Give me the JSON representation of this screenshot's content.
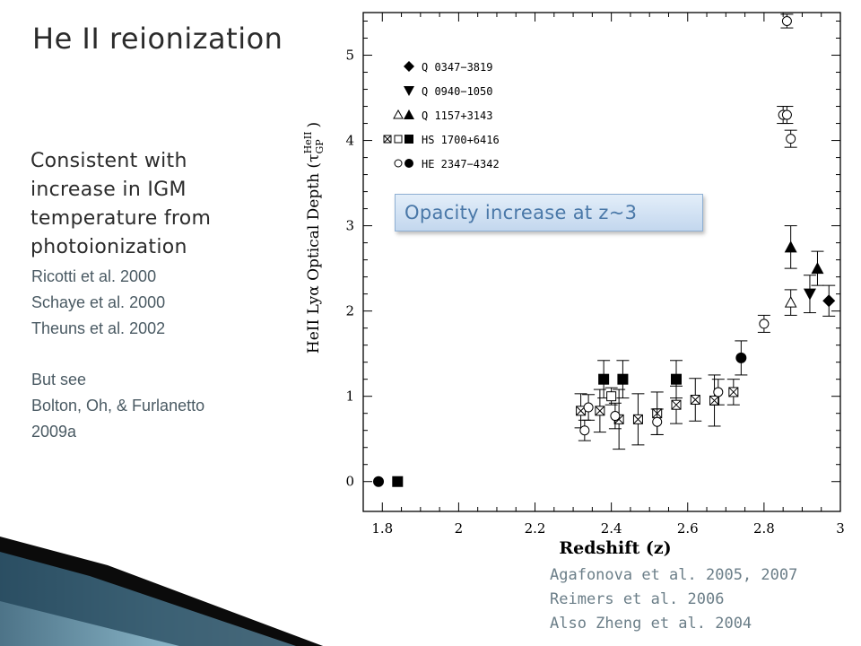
{
  "slide": {
    "title": "He II reionization",
    "body": [
      "Consistent with",
      "increase in IGM",
      "temperature from",
      "photoionization"
    ],
    "refs_left": [
      "Ricotti et al. 2000",
      "Schaye et al. 2000",
      "Theuns et al. 2002"
    ],
    "see_also": [
      "But see",
      "Bolton, Oh, & Furlanetto",
      "2009a"
    ],
    "refs_bottom": [
      "Agafonova et al. 2005, 2007",
      "Reimers et al. 2006",
      "Also Zheng et al. 2004"
    ],
    "callout": "Opacity increase at z~3"
  },
  "chart_data": {
    "type": "scatter",
    "xlabel": "Redshift (z)",
    "ylabel": "HeII Lyα Optical Depth (τ",
    "ylabel_sub": "GP",
    "ylabel_sup": "HeII",
    "xlim": [
      1.75,
      3.0
    ],
    "ylim": [
      -0.35,
      5.5
    ],
    "xticks": [
      1.8,
      2,
      2.2,
      2.4,
      2.6,
      2.8,
      3
    ],
    "xtick_labels": [
      "1.8",
      "2",
      "2.2",
      "2.4",
      "2.6",
      "2.8",
      "3"
    ],
    "yticks": [
      0,
      1,
      2,
      3,
      4,
      5
    ],
    "ytick_labels": [
      "0",
      "1",
      "2",
      "3",
      "4",
      "5"
    ],
    "legend": [
      {
        "label": "Q 0347−3819",
        "markers": [
          "diamond-filled"
        ]
      },
      {
        "label": "Q 0940−1050",
        "markers": [
          "tri-down-filled"
        ]
      },
      {
        "label": "Q 1157+3143",
        "markers": [
          "tri-up-open",
          "tri-up-filled"
        ]
      },
      {
        "label": "HS 1700+6416",
        "markers": [
          "square-x",
          "square-open",
          "square-filled"
        ]
      },
      {
        "label": "HE 2347−4342",
        "markers": [
          "circle-open",
          "circle-filled"
        ]
      }
    ],
    "series": [
      {
        "name": "Q 0347−3819",
        "marker": "diamond-filled",
        "points": [
          {
            "x": 2.97,
            "y": 2.12,
            "err": 0.18
          }
        ]
      },
      {
        "name": "Q 0940−1050",
        "marker": "tri-down-filled",
        "points": [
          {
            "x": 2.92,
            "y": 2.2,
            "err": 0.22
          }
        ]
      },
      {
        "name": "Q 1157+3143",
        "marker": "tri-up-filled",
        "points": [
          {
            "x": 2.87,
            "y": 2.75,
            "err": 0.25
          },
          {
            "x": 2.94,
            "y": 2.5,
            "err": 0.2
          }
        ]
      },
      {
        "name": "Q 1157+3143",
        "marker": "tri-up-open",
        "points": [
          {
            "x": 2.87,
            "y": 2.1,
            "err": 0.15
          }
        ]
      },
      {
        "name": "HS 1700+6416",
        "marker": "square-filled",
        "points": [
          {
            "x": 1.84,
            "y": 0.0,
            "err": 0
          },
          {
            "x": 2.38,
            "y": 1.2,
            "err": 0.22
          },
          {
            "x": 2.43,
            "y": 1.2,
            "err": 0.22
          },
          {
            "x": 2.57,
            "y": 1.2,
            "err": 0.22
          }
        ]
      },
      {
        "name": "HS 1700+6416",
        "marker": "square-open",
        "points": [
          {
            "x": 2.4,
            "y": 1.0,
            "err": 0.1
          }
        ]
      },
      {
        "name": "HS 1700+6416",
        "marker": "square-x",
        "points": [
          {
            "x": 2.32,
            "y": 0.83,
            "err": 0.2
          },
          {
            "x": 2.37,
            "y": 0.83,
            "err": 0.25
          },
          {
            "x": 2.42,
            "y": 0.73,
            "err": 0.35
          },
          {
            "x": 2.47,
            "y": 0.73,
            "err": 0.3
          },
          {
            "x": 2.52,
            "y": 0.8,
            "err": 0.25
          },
          {
            "x": 2.57,
            "y": 0.9,
            "err": 0.22
          },
          {
            "x": 2.62,
            "y": 0.96,
            "err": 0.25
          },
          {
            "x": 2.67,
            "y": 0.95,
            "err": 0.3
          },
          {
            "x": 2.72,
            "y": 1.05,
            "err": 0.15
          }
        ]
      },
      {
        "name": "HE 2347−4342",
        "marker": "circle-filled",
        "points": [
          {
            "x": 1.79,
            "y": 0.0,
            "err": 0
          },
          {
            "x": 2.74,
            "y": 1.45,
            "err": 0.2
          }
        ]
      },
      {
        "name": "HE 2347−4342",
        "marker": "circle-open",
        "points": [
          {
            "x": 2.33,
            "y": 0.6,
            "err": 0.12
          },
          {
            "x": 2.34,
            "y": 0.87,
            "err": 0.15
          },
          {
            "x": 2.41,
            "y": 0.77,
            "err": 0.15
          },
          {
            "x": 2.52,
            "y": 0.7,
            "err": 0.15
          },
          {
            "x": 2.68,
            "y": 1.05,
            "err": 0.15
          },
          {
            "x": 2.8,
            "y": 1.85,
            "err": 0.1
          },
          {
            "x": 2.85,
            "y": 4.3,
            "err": 0.1
          },
          {
            "x": 2.86,
            "y": 4.3,
            "err": 0.1
          },
          {
            "x": 2.87,
            "y": 4.02,
            "err": 0.1
          },
          {
            "x": 2.86,
            "y": 5.4,
            "err": 0.08
          }
        ]
      }
    ]
  }
}
